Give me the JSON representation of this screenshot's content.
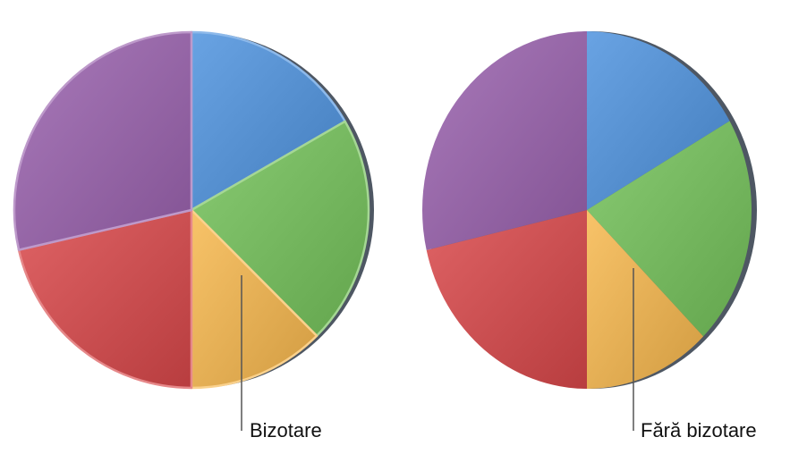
{
  "chart_data": [
    {
      "type": "pie",
      "label": "Bizotare",
      "beveled": true,
      "slices": [
        {
          "value": 16.7,
          "color": "#4f93de"
        },
        {
          "value": 20.8,
          "color": "#74c25a"
        },
        {
          "value": 12.5,
          "color": "#f7b84e"
        },
        {
          "value": 21.4,
          "color": "#d9484a"
        },
        {
          "value": 28.6,
          "color": "#9a62ae"
        }
      ]
    },
    {
      "type": "pie",
      "label": "Fără bizotare",
      "beveled": false,
      "slices": [
        {
          "value": 16.7,
          "color": "#4f93de"
        },
        {
          "value": 20.8,
          "color": "#74c25a"
        },
        {
          "value": 12.5,
          "color": "#f7b84e"
        },
        {
          "value": 21.4,
          "color": "#d9484a"
        },
        {
          "value": 28.6,
          "color": "#9a62ae"
        }
      ]
    }
  ]
}
